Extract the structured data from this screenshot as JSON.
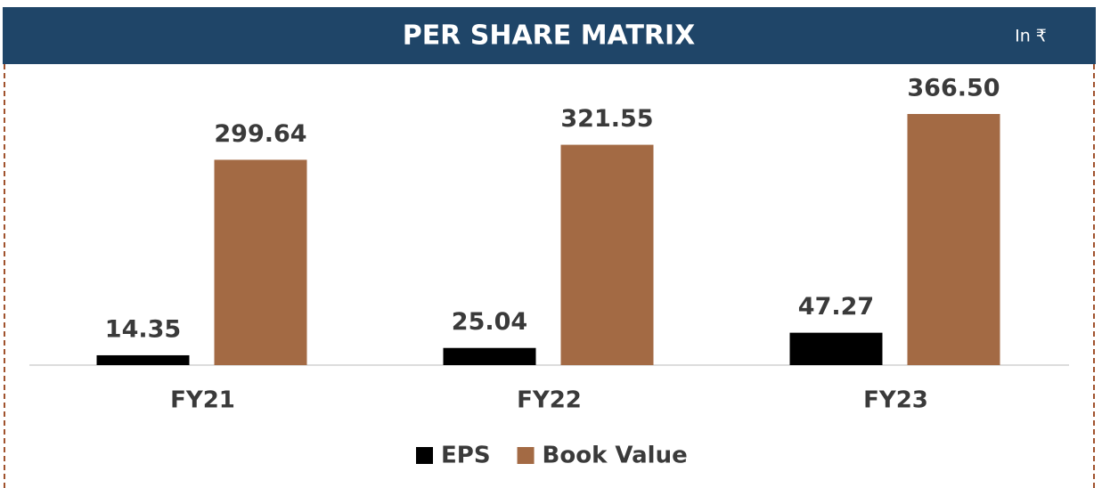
{
  "chart_data": {
    "type": "bar",
    "title": "PER SHARE MATRIX",
    "subtitle": "In ₹",
    "categories": [
      "FY21",
      "FY22",
      "FY23"
    ],
    "series": [
      {
        "name": "EPS",
        "color": "#000000",
        "values": [
          14.35,
          25.04,
          47.27
        ],
        "value_labels": [
          "14.35",
          "25.04",
          "47.27"
        ]
      },
      {
        "name": "Book Value",
        "color": "#a36a44",
        "values": [
          299.64,
          321.55,
          366.5
        ],
        "value_labels": [
          "299.64",
          "321.55",
          "366.50"
        ]
      }
    ],
    "legend": "bottom"
  }
}
